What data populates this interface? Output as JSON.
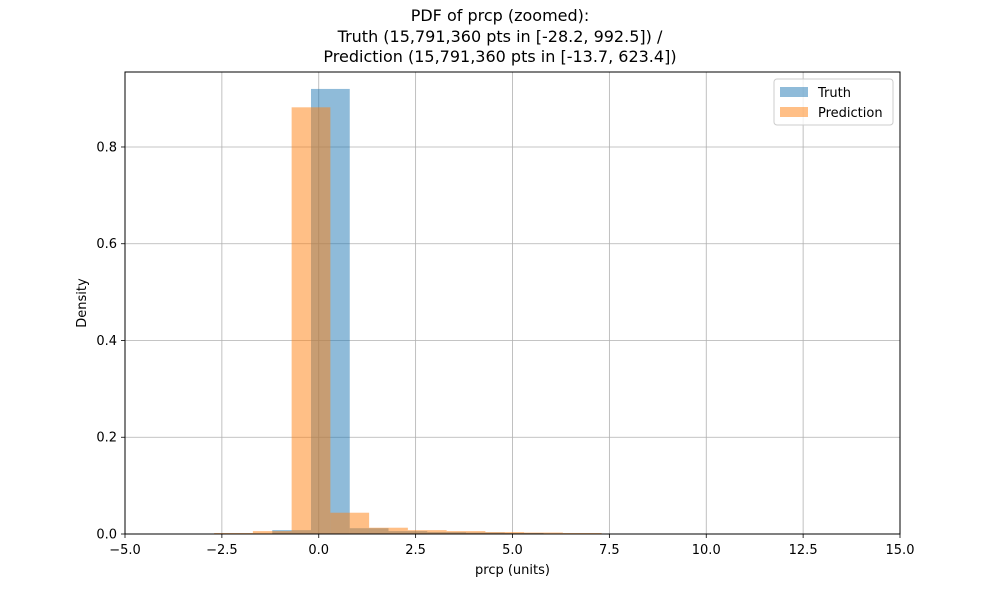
{
  "chart_data": {
    "type": "histogram",
    "title_lines": [
      "PDF of prcp (zoomed):",
      "Truth (15,791,360 pts in [-28.2, 992.5]) /",
      "Prediction (15,791,360 pts in [-13.7, 623.4])"
    ],
    "xlabel": "prcp (units)",
    "ylabel": "Density",
    "xlim": [
      -5.0,
      15.0
    ],
    "ylim": [
      0.0,
      0.955
    ],
    "xticks": [
      -5.0,
      -2.5,
      0.0,
      2.5,
      5.0,
      7.5,
      10.0,
      12.5,
      15.0
    ],
    "xtick_labels": [
      "−5.0",
      "−2.5",
      "0.0",
      "2.5",
      "5.0",
      "7.5",
      "10.0",
      "12.5",
      "15.0"
    ],
    "yticks": [
      0.0,
      0.2,
      0.4,
      0.6,
      0.8
    ],
    "ytick_labels": [
      "0.0",
      "0.2",
      "0.4",
      "0.6",
      "0.8"
    ],
    "grid": true,
    "legend_position": "top-right",
    "series": [
      {
        "name": "Truth",
        "color": "#1f77b4",
        "alpha": 0.5,
        "bins": [
          {
            "x0": -1.2,
            "x1": -0.2,
            "value": 0.008
          },
          {
            "x0": -0.2,
            "x1": 0.8,
            "value": 0.92
          },
          {
            "x0": 0.8,
            "x1": 1.8,
            "value": 0.012
          },
          {
            "x0": 1.8,
            "x1": 2.8,
            "value": 0.006
          },
          {
            "x0": 2.8,
            "x1": 3.8,
            "value": 0.004
          },
          {
            "x0": 3.8,
            "x1": 4.8,
            "value": 0.003
          },
          {
            "x0": 4.8,
            "x1": 5.8,
            "value": 0.002
          }
        ]
      },
      {
        "name": "Prediction",
        "color": "#ff7f0e",
        "alpha": 0.5,
        "bins": [
          {
            "x0": -2.7,
            "x1": -1.7,
            "value": 0.002
          },
          {
            "x0": -1.7,
            "x1": -0.7,
            "value": 0.006
          },
          {
            "x0": -0.7,
            "x1": 0.3,
            "value": 0.882
          },
          {
            "x0": 0.3,
            "x1": 1.3,
            "value": 0.044
          },
          {
            "x0": 1.3,
            "x1": 2.3,
            "value": 0.013
          },
          {
            "x0": 2.3,
            "x1": 3.3,
            "value": 0.008
          },
          {
            "x0": 3.3,
            "x1": 4.3,
            "value": 0.006
          },
          {
            "x0": 4.3,
            "x1": 5.3,
            "value": 0.004
          },
          {
            "x0": 5.3,
            "x1": 6.3,
            "value": 0.003
          },
          {
            "x0": 6.3,
            "x1": 7.3,
            "value": 0.002
          },
          {
            "x0": 7.3,
            "x1": 15.0,
            "value": 0.001
          }
        ]
      }
    ]
  }
}
